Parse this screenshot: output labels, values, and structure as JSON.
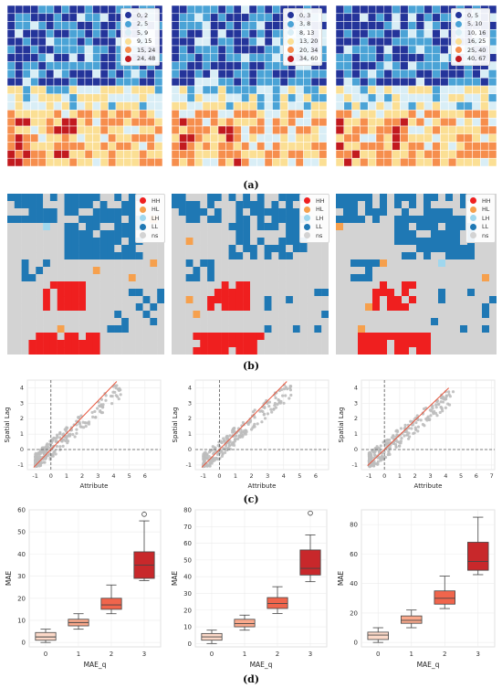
{
  "sublabels": {
    "a": "(a)",
    "b": "(b)",
    "c": "(c)",
    "d": "(d)"
  },
  "colors": {
    "class_palette": [
      "#24349a",
      "#4aa3d6",
      "#d9eef6",
      "#fbdf94",
      "#f68e4d",
      "#c21a1f"
    ],
    "HH": "#ef1f1f",
    "HL": "#f6a04d",
    "LH": "#9fd7ee",
    "LL": "#1f78b4",
    "ns": "#d3d3d3",
    "scatter_points": "#bdbdbd",
    "fit_line": "#e8573e",
    "box_fills": [
      "#fcd9c8",
      "#f9a98c",
      "#f0654c",
      "#c8282b"
    ]
  },
  "chart_data": [
    {
      "type": "heatmap",
      "panel": "a1",
      "legend": [
        {
          "label": "0,  2",
          "color": "#24349a"
        },
        {
          "label": "2,  5",
          "color": "#4aa3d6"
        },
        {
          "label": "5,  9",
          "color": "#d9eef6"
        },
        {
          "label": "9, 15",
          "color": "#fbdf94"
        },
        {
          "label": "15, 24",
          "color": "#f68e4d"
        },
        {
          "label": "24, 48",
          "color": "#c21a1f"
        }
      ]
    },
    {
      "type": "heatmap",
      "panel": "a2",
      "legend": [
        {
          "label": "0,  3",
          "color": "#24349a"
        },
        {
          "label": "3,  8",
          "color": "#4aa3d6"
        },
        {
          "label": "8, 13",
          "color": "#d9eef6"
        },
        {
          "label": "13, 20",
          "color": "#fbdf94"
        },
        {
          "label": "20, 34",
          "color": "#f68e4d"
        },
        {
          "label": "34, 60",
          "color": "#c21a1f"
        }
      ]
    },
    {
      "type": "heatmap",
      "panel": "a3",
      "legend": [
        {
          "label": "0,  5",
          "color": "#24349a"
        },
        {
          "label": "5, 10",
          "color": "#4aa3d6"
        },
        {
          "label": "10, 16",
          "color": "#d9eef6"
        },
        {
          "label": "16, 25",
          "color": "#fbdf94"
        },
        {
          "label": "25, 40",
          "color": "#f68e4d"
        },
        {
          "label": "40, 67",
          "color": "#c21a1f"
        }
      ]
    },
    {
      "type": "heatmap",
      "panel": "b",
      "legend": [
        {
          "label": "HH",
          "color": "#ef1f1f"
        },
        {
          "label": "HL",
          "color": "#f6a04d"
        },
        {
          "label": "LH",
          "color": "#9fd7ee"
        },
        {
          "label": "LL",
          "color": "#1f78b4"
        },
        {
          "label": "ns",
          "color": "#d3d3d3"
        }
      ]
    },
    {
      "type": "scatter",
      "panel": "c1",
      "xlabel": "Attribute",
      "ylabel": "Spatial Lag",
      "xlim": [
        -1.5,
        7
      ],
      "ylim": [
        -1.3,
        4.5
      ],
      "xticks": [
        -1,
        0,
        1,
        2,
        3,
        4,
        5,
        6
      ],
      "yticks": [
        -1,
        0,
        1,
        2,
        3,
        4
      ],
      "fit": {
        "slope": 1.05,
        "intercept": 0.0
      }
    },
    {
      "type": "scatter",
      "panel": "c2",
      "xlabel": "Attribute",
      "ylabel": "Spatial Lag",
      "xlim": [
        -1.5,
        6.8
      ],
      "ylim": [
        -1.3,
        4.5
      ],
      "xticks": [
        -1,
        0,
        1,
        2,
        3,
        4,
        5,
        6
      ],
      "yticks": [
        -1,
        0,
        1,
        2,
        3,
        4
      ],
      "fit": {
        "slope": 1.05,
        "intercept": 0.0
      }
    },
    {
      "type": "scatter",
      "panel": "c3",
      "xlabel": "Attribute",
      "ylabel": "Spatial Lag",
      "xlim": [
        -1.5,
        7.2
      ],
      "ylim": [
        -1.3,
        4.5
      ],
      "xticks": [
        -1,
        0,
        1,
        2,
        3,
        4,
        5,
        6,
        7
      ],
      "yticks": [
        -1,
        0,
        1,
        2,
        3,
        4
      ],
      "fit": {
        "slope": 0.95,
        "intercept": 0.0
      }
    },
    {
      "type": "box",
      "panel": "d1",
      "xlabel": "MAE_q",
      "ylabel": "MAE",
      "categories": [
        "0",
        "1",
        "2",
        "3"
      ],
      "ylim": [
        -2,
        60
      ],
      "yticks": [
        0,
        10,
        20,
        30,
        40,
        50,
        60
      ],
      "boxes": [
        {
          "min": 0,
          "q1": 1,
          "median": 2.5,
          "q3": 4.5,
          "max": 6
        },
        {
          "min": 6,
          "q1": 7.5,
          "median": 9,
          "q3": 10.5,
          "max": 13
        },
        {
          "min": 13,
          "q1": 15,
          "median": 17,
          "q3": 20,
          "max": 26
        },
        {
          "min": 28,
          "q1": 29,
          "median": 35,
          "q3": 41,
          "max": 55,
          "outliers": [
            58
          ]
        }
      ]
    },
    {
      "type": "box",
      "panel": "d2",
      "xlabel": "MAE_q",
      "ylabel": "MAE",
      "categories": [
        "0",
        "1",
        "2",
        "3"
      ],
      "ylim": [
        -2,
        80
      ],
      "yticks": [
        0,
        10,
        20,
        30,
        40,
        50,
        60,
        70,
        80
      ],
      "boxes": [
        {
          "min": 0,
          "q1": 2,
          "median": 4,
          "q3": 6,
          "max": 8
        },
        {
          "min": 8,
          "q1": 10,
          "median": 12,
          "q3": 14.5,
          "max": 17
        },
        {
          "min": 18,
          "q1": 21,
          "median": 24,
          "q3": 27.5,
          "max": 34
        },
        {
          "min": 37,
          "q1": 41,
          "median": 45,
          "q3": 56,
          "max": 65,
          "outliers": [
            78
          ]
        }
      ]
    },
    {
      "type": "box",
      "panel": "d3",
      "xlabel": "MAE_q",
      "ylabel": "MAE",
      "categories": [
        "0",
        "1",
        "2",
        "3"
      ],
      "ylim": [
        -3,
        90
      ],
      "yticks": [
        0,
        20,
        40,
        60,
        80
      ],
      "boxes": [
        {
          "min": 0,
          "q1": 2,
          "median": 5,
          "q3": 7,
          "max": 10
        },
        {
          "min": 10,
          "q1": 13,
          "median": 15,
          "q3": 18,
          "max": 22
        },
        {
          "min": 23,
          "q1": 26,
          "median": 30,
          "q3": 35,
          "max": 45
        },
        {
          "min": 46,
          "q1": 49,
          "median": 55,
          "q3": 68,
          "max": 85
        }
      ]
    }
  ]
}
